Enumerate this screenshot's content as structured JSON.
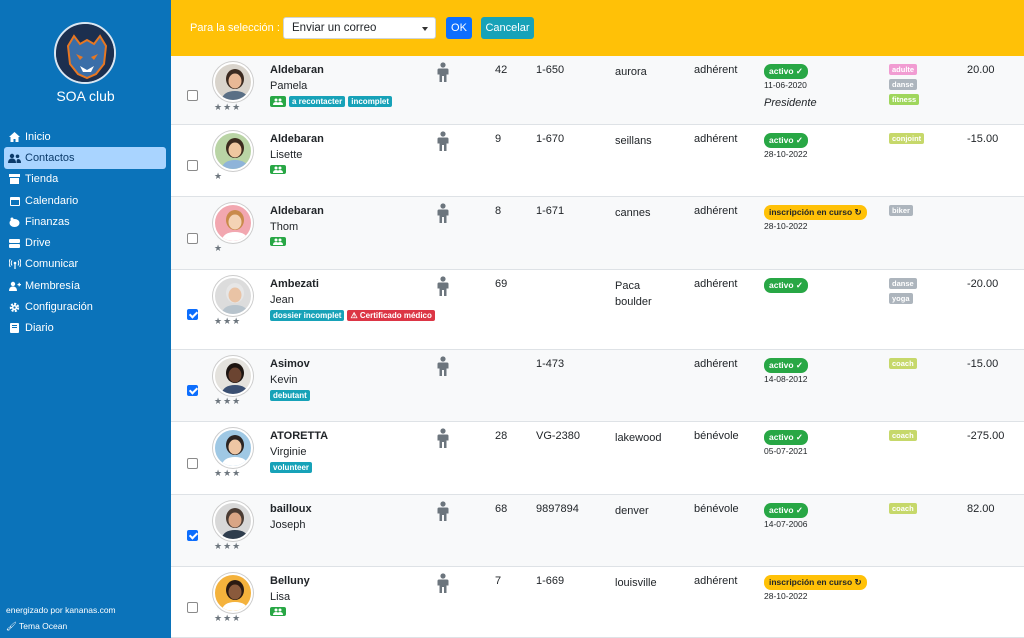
{
  "app": {
    "club_name": "SOA club",
    "powered_by": "energizado por kananas.com",
    "theme": "Tema Ocean"
  },
  "sidebar": {
    "items": [
      {
        "label": "Inicio",
        "icon": "home-icon"
      },
      {
        "label": "Contactos",
        "icon": "users-icon",
        "active": true
      },
      {
        "label": "Tienda",
        "icon": "store-icon"
      },
      {
        "label": "Calendario",
        "icon": "calendar-icon"
      },
      {
        "label": "Finanzas",
        "icon": "finance-icon"
      },
      {
        "label": "Drive",
        "icon": "drive-icon"
      },
      {
        "label": "Comunicar",
        "icon": "broadcast-icon"
      },
      {
        "label": "Membresía",
        "icon": "membership-icon"
      },
      {
        "label": "Configuración",
        "icon": "gear-icon"
      },
      {
        "label": "Diario",
        "icon": "journal-icon"
      }
    ]
  },
  "toolbar": {
    "selection_label": "Para la selección :",
    "action_value": "Enviar un correo",
    "ok_label": "OK",
    "cancel_label": "Cancelar"
  },
  "colors": {
    "sidebar": "#0b73ba",
    "toolbar": "#ffc107",
    "status_active": "#28a745",
    "status_pending": "#ffc107"
  },
  "contacts": [
    {
      "checked": false,
      "stars": "★★★",
      "last": "Aldebaran",
      "first": "Pamela",
      "group_icon": true,
      "tags": [
        {
          "text": "a recontacter",
          "color": "teal"
        },
        {
          "text": "incomplet",
          "color": "teal"
        }
      ],
      "number": "42",
      "code": "1-650",
      "city": "aurora",
      "role": "adhérent",
      "status": "activo ✓",
      "status_color": "green",
      "date": "11-06-2020",
      "role_extra": "Presidente",
      "categories": [
        {
          "text": "adulte",
          "color": "#f19cd2"
        },
        {
          "text": "danse",
          "color": "#adb5bd"
        },
        {
          "text": "fitness",
          "color": "#9fd65c"
        }
      ],
      "amount": "20.00",
      "avatar_bg": "#d9d4cc",
      "skin": "#e8b896",
      "hair": "#3b2a20",
      "shirt": "#5a6f85"
    },
    {
      "checked": false,
      "stars": "★",
      "last": "Aldebaran",
      "first": "Lisette",
      "group_icon": true,
      "tags": [],
      "number": "9",
      "code": "1-670",
      "city": "seillans",
      "role": "adhérent",
      "status": "activo ✓",
      "status_color": "green",
      "date": "28-10-2022",
      "role_extra": "",
      "categories": [
        {
          "text": "conjoint",
          "color": "#c6d86a"
        }
      ],
      "amount": "-15.00",
      "avatar_bg": "#b9d4a5",
      "skin": "#f0c7a0",
      "hair": "#3c2b1e",
      "shirt": "#8fb4d9"
    },
    {
      "checked": false,
      "stars": "★",
      "last": "Aldebaran",
      "first": "Thom",
      "group_icon": true,
      "tags": [],
      "number": "8",
      "code": "1-671",
      "city": "cannes",
      "role": "adhérent",
      "status": "inscripción en curso ↻",
      "status_color": "yellow",
      "date": "28-10-2022",
      "role_extra": "",
      "categories": [
        {
          "text": "biker",
          "color": "#adb5bd"
        }
      ],
      "amount": "",
      "avatar_bg": "#f2a7b0",
      "skin": "#f4d3b5",
      "hair": "#c98a4b",
      "shirt": "#ffffff"
    },
    {
      "checked": true,
      "stars": "★★★",
      "last": "Ambezati",
      "first": "Jean",
      "group_icon": false,
      "tags": [
        {
          "text": "dossier incomplet",
          "color": "teal"
        },
        {
          "text": "⚠ Certificado médico",
          "color": "red"
        }
      ],
      "number": "69",
      "code": "",
      "city": "Paca\nboulder",
      "role": "adhérent",
      "status": "activo ✓",
      "status_color": "green",
      "date": "",
      "role_extra": "",
      "categories": [
        {
          "text": "danse",
          "color": "#adb5bd"
        },
        {
          "text": "yoga",
          "color": "#adb5bd"
        }
      ],
      "amount": "-20.00",
      "avatar_bg": "#dcdcdc",
      "skin": "#e9c3a5",
      "hair": "#e6e6e6",
      "shirt": "#b7c3cc"
    },
    {
      "checked": true,
      "stars": "★★★",
      "last": "Asimov",
      "first": "Kevin",
      "group_icon": false,
      "tags": [
        {
          "text": "debutant",
          "color": "teal"
        }
      ],
      "number": "",
      "code": "1-473",
      "city": "",
      "role": "adhérent",
      "status": "activo ✓",
      "status_color": "green",
      "date": "14-08-2012",
      "role_extra": "",
      "categories": [
        {
          "text": "coach",
          "color": "#c6d86a"
        }
      ],
      "amount": "-15.00",
      "avatar_bg": "#e4e2dd",
      "skin": "#6b4431",
      "hair": "#1c1410",
      "shirt": "#3a4f72"
    },
    {
      "checked": false,
      "stars": "★★★",
      "last": "ATORETTA",
      "first": "Virginie",
      "group_icon": false,
      "tags": [
        {
          "text": "volunteer",
          "color": "teal"
        }
      ],
      "number": "28",
      "code": "VG-2380",
      "city": "lakewood",
      "role": "bénévole",
      "status": "activo ✓",
      "status_color": "green",
      "date": "05-07-2021",
      "role_extra": "",
      "categories": [
        {
          "text": "coach",
          "color": "#c6d86a"
        }
      ],
      "amount": "-275.00",
      "avatar_bg": "#9fc8e4",
      "skin": "#eec6a4",
      "hair": "#2b2422",
      "shirt": "#ffffff"
    },
    {
      "checked": true,
      "stars": "★★★",
      "last": "bailloux",
      "first": "Joseph",
      "group_icon": false,
      "tags": [],
      "number": "68",
      "code": "9897894",
      "city": "denver",
      "role": "bénévole",
      "status": "activo ✓",
      "status_color": "green",
      "date": "14-07-2006",
      "role_extra": "",
      "categories": [
        {
          "text": "coach",
          "color": "#c6d86a"
        }
      ],
      "amount": "82.00",
      "avatar_bg": "#d8d8d8",
      "skin": "#d9a585",
      "hair": "#4a3b33",
      "shirt": "#2f3d4d"
    },
    {
      "checked": false,
      "stars": "★★★",
      "last": "Belluny",
      "first": "Lisa",
      "group_icon": true,
      "tags": [],
      "number": "7",
      "code": "1-669",
      "city": "louisville",
      "role": "adhérent",
      "status": "inscripción en curso ↻",
      "status_color": "yellow",
      "date": "28-10-2022",
      "role_extra": "",
      "categories": [],
      "amount": "",
      "avatar_bg": "#f4b23c",
      "skin": "#8a5a3c",
      "hair": "#2a1a12",
      "shirt": "#ffffff"
    }
  ]
}
